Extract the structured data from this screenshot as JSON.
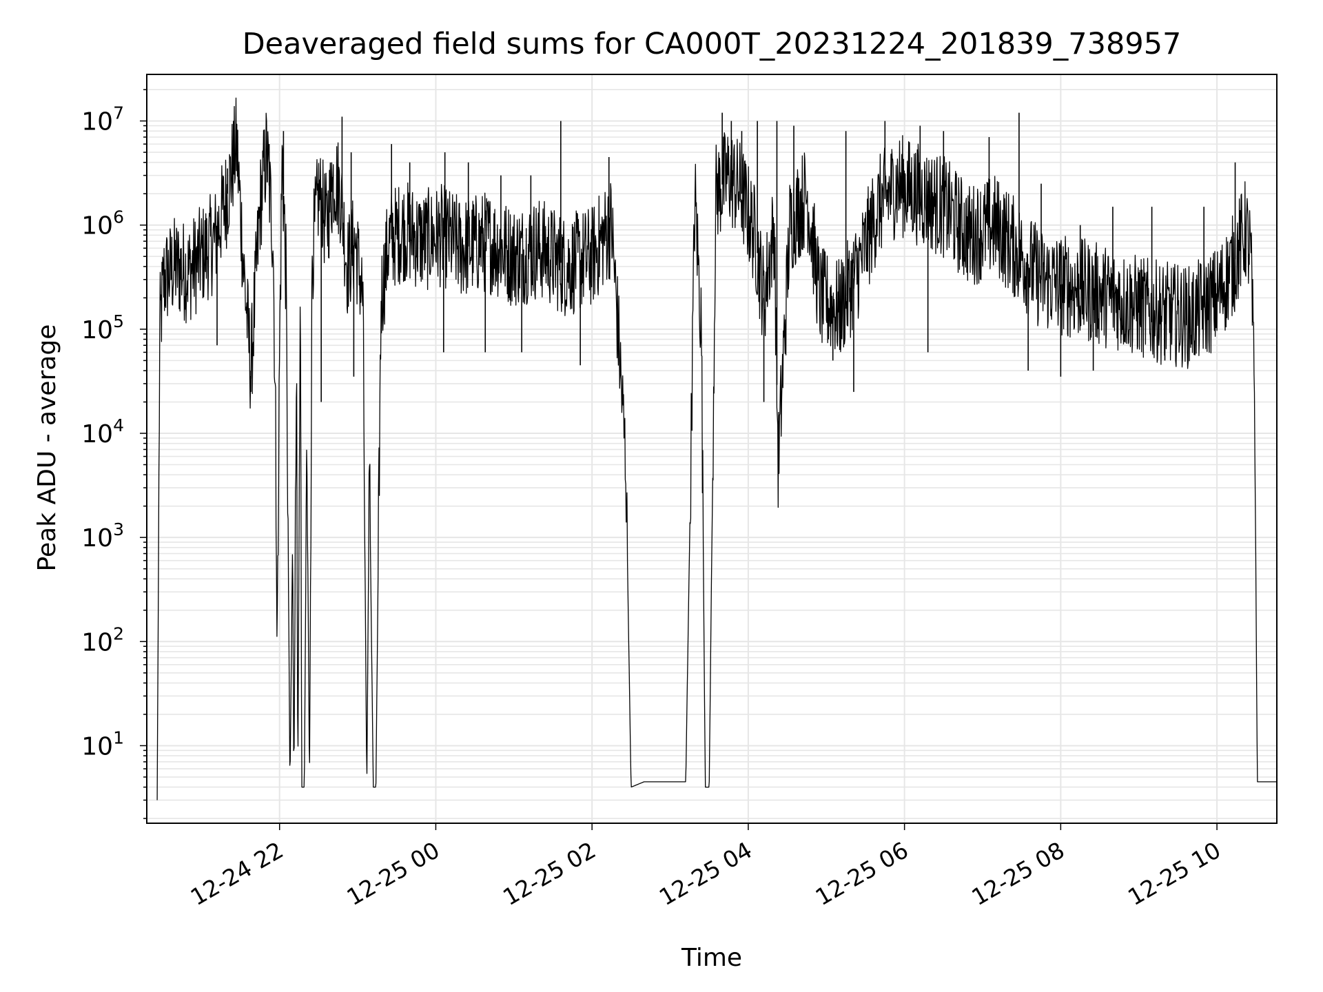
{
  "chart_data": {
    "type": "line",
    "title": "Deaveraged field sums for CA000T_20231224_201839_738957",
    "xlabel": "Time",
    "ylabel": "Peak ADU - average",
    "yscale": "log",
    "ylim": [
      1.8,
      28000000
    ],
    "xlim": [
      "2023-12-24 20:18",
      "2023-12-25 10:46"
    ],
    "grid": true,
    "x_ticks": [
      {
        "value": "2023-12-24 22:00",
        "label": "12-24 22"
      },
      {
        "value": "2023-12-25 00:00",
        "label": "12-25 00"
      },
      {
        "value": "2023-12-25 02:00",
        "label": "12-25 02"
      },
      {
        "value": "2023-12-25 04:00",
        "label": "12-25 04"
      },
      {
        "value": "2023-12-25 06:00",
        "label": "12-25 06"
      },
      {
        "value": "2023-12-25 08:00",
        "label": "12-25 08"
      },
      {
        "value": "2023-12-25 10:00",
        "label": "12-25 10"
      }
    ],
    "y_ticks": [
      {
        "value": 10,
        "base": "10",
        "exp": "1"
      },
      {
        "value": 100,
        "base": "10",
        "exp": "2"
      },
      {
        "value": 1000,
        "base": "10",
        "exp": "3"
      },
      {
        "value": 10000,
        "base": "10",
        "exp": "4"
      },
      {
        "value": 100000,
        "base": "10",
        "exp": "5"
      },
      {
        "value": 1000000,
        "base": "10",
        "exp": "6"
      },
      {
        "value": 10000000,
        "base": "10",
        "exp": "7"
      }
    ],
    "series": [
      {
        "color": "#000000",
        "points": [
          [
            "2023-12-24 20:26",
            3
          ],
          [
            "2023-12-24 20:28",
            100000
          ],
          [
            "2023-12-24 20:31",
            300000
          ],
          [
            "2023-12-24 20:40",
            400000
          ],
          [
            "2023-12-24 20:50",
            350000
          ],
          [
            "2023-12-24 21:00",
            500000
          ],
          [
            "2023-12-24 21:10",
            700000
          ],
          [
            "2023-12-24 21:20",
            2000000
          ],
          [
            "2023-12-24 21:27",
            6000000
          ],
          [
            "2023-12-24 21:33",
            300000
          ],
          [
            "2023-12-24 21:38",
            40000
          ],
          [
            "2023-12-24 21:45",
            1500000
          ],
          [
            "2023-12-24 21:50",
            5000000
          ],
          [
            "2023-12-24 21:55",
            800000
          ],
          [
            "2023-12-24 21:57",
            10000
          ],
          [
            "2023-12-24 21:58",
            90
          ],
          [
            "2023-12-24 22:00",
            60000
          ],
          [
            "2023-12-24 22:02",
            5000000
          ],
          [
            "2023-12-24 22:05",
            300000
          ],
          [
            "2023-12-24 22:07",
            200
          ],
          [
            "2023-12-24 22:08",
            4
          ],
          [
            "2023-12-24 22:10",
            1000
          ],
          [
            "2023-12-24 22:11",
            4
          ],
          [
            "2023-12-24 22:13",
            50000
          ],
          [
            "2023-12-24 22:14",
            4
          ],
          [
            "2023-12-24 22:16",
            300000
          ],
          [
            "2023-12-24 22:17",
            4
          ],
          [
            "2023-12-24 22:19",
            4
          ],
          [
            "2023-12-24 22:21",
            10000
          ],
          [
            "2023-12-24 22:23",
            4
          ],
          [
            "2023-12-24 22:25",
            500000
          ],
          [
            "2023-12-24 22:30",
            2000000
          ],
          [
            "2023-12-24 22:36",
            1000000
          ],
          [
            "2023-12-24 22:42",
            3000000
          ],
          [
            "2023-12-24 22:47",
            2000000
          ],
          [
            "2023-12-24 22:52",
            400000
          ],
          [
            "2023-12-24 22:58",
            700000
          ],
          [
            "2023-12-24 23:04",
            200000
          ],
          [
            "2023-12-24 23:07",
            4
          ],
          [
            "2023-12-24 23:09",
            5000
          ],
          [
            "2023-12-24 23:12",
            4
          ],
          [
            "2023-12-24 23:14",
            4
          ],
          [
            "2023-12-24 23:16",
            1000
          ],
          [
            "2023-12-24 23:18",
            200000
          ],
          [
            "2023-12-24 23:24",
            700000
          ],
          [
            "2023-12-24 23:35",
            900000
          ],
          [
            "2023-12-24 23:50",
            700000
          ],
          [
            "2023-12-25 00:05",
            800000
          ],
          [
            "2023-12-25 00:20",
            600000
          ],
          [
            "2023-12-25 00:40",
            700000
          ],
          [
            "2023-12-25 01:00",
            500000
          ],
          [
            "2023-12-25 01:20",
            600000
          ],
          [
            "2023-12-25 01:40",
            400000
          ],
          [
            "2023-12-25 02:00",
            500000
          ],
          [
            "2023-12-25 02:15",
            1000000
          ],
          [
            "2023-12-25 02:20",
            100000
          ],
          [
            "2023-12-25 02:26",
            5000
          ],
          [
            "2023-12-25 02:30",
            4
          ],
          [
            "2023-12-25 02:40",
            4.5
          ],
          [
            "2023-12-25 02:55",
            4.5
          ],
          [
            "2023-12-25 03:12",
            4.5
          ],
          [
            "2023-12-25 03:15",
            1000
          ],
          [
            "2023-12-25 03:19",
            2000000
          ],
          [
            "2023-12-25 03:24",
            100000
          ],
          [
            "2023-12-25 03:27",
            4
          ],
          [
            "2023-12-25 03:30",
            4
          ],
          [
            "2023-12-25 03:35",
            2000000
          ],
          [
            "2023-12-25 03:45",
            3000000
          ],
          [
            "2023-12-25 03:55",
            2000000
          ],
          [
            "2023-12-25 04:05",
            800000
          ],
          [
            "2023-12-25 04:12",
            200000
          ],
          [
            "2023-12-25 04:20",
            1000000
          ],
          [
            "2023-12-25 04:23",
            5000
          ],
          [
            "2023-12-25 04:26",
            30000
          ],
          [
            "2023-12-25 04:32",
            1000000
          ],
          [
            "2023-12-25 04:45",
            2000000
          ],
          [
            "2023-12-25 04:55",
            200000
          ],
          [
            "2023-12-25 05:10",
            150000
          ],
          [
            "2023-12-25 05:25",
            400000
          ],
          [
            "2023-12-25 05:40",
            1500000
          ],
          [
            "2023-12-25 05:55",
            2500000
          ],
          [
            "2023-12-25 06:10",
            2000000
          ],
          [
            "2023-12-25 06:30",
            1500000
          ],
          [
            "2023-12-25 06:50",
            800000
          ],
          [
            "2023-12-25 07:10",
            1000000
          ],
          [
            "2023-12-25 07:30",
            500000
          ],
          [
            "2023-12-25 07:45",
            300000
          ],
          [
            "2023-12-25 08:10",
            250000
          ],
          [
            "2023-12-25 08:40",
            200000
          ],
          [
            "2023-12-25 09:10",
            150000
          ],
          [
            "2023-12-25 09:40",
            130000
          ],
          [
            "2023-12-25 10:00",
            200000
          ],
          [
            "2023-12-25 10:12",
            400000
          ],
          [
            "2023-12-25 10:22",
            900000
          ],
          [
            "2023-12-25 10:26",
            500000
          ],
          [
            "2023-12-25 10:29",
            20000
          ],
          [
            "2023-12-25 10:31",
            4.5
          ],
          [
            "2023-12-25 10:46",
            4.5
          ]
        ],
        "spikes": [
          [
            "2023-12-24 21:20",
            3500000
          ],
          [
            "2023-12-24 21:27",
            8000000
          ],
          [
            "2023-12-24 21:52",
            6000000
          ],
          [
            "2023-12-24 22:03",
            8000000
          ],
          [
            "2023-12-24 22:40",
            4000000
          ],
          [
            "2023-12-24 22:48",
            11000000
          ],
          [
            "2023-12-24 22:55",
            5000000
          ],
          [
            "2023-12-24 23:26",
            6000000
          ],
          [
            "2023-12-24 23:40",
            4000000
          ],
          [
            "2023-12-25 00:07",
            5000000
          ],
          [
            "2023-12-25 00:25",
            4000000
          ],
          [
            "2023-12-25 00:50",
            3000000
          ],
          [
            "2023-12-25 01:13",
            3000000
          ],
          [
            "2023-12-25 01:36",
            10000000
          ],
          [
            "2023-12-25 02:13",
            4500000
          ],
          [
            "2023-12-25 03:40",
            12000000
          ],
          [
            "2023-12-25 03:47",
            10000000
          ],
          [
            "2023-12-25 03:55",
            8000000
          ],
          [
            "2023-12-25 04:07",
            10000000
          ],
          [
            "2023-12-25 04:22",
            10000000
          ],
          [
            "2023-12-25 04:35",
            9000000
          ],
          [
            "2023-12-25 05:15",
            8000000
          ],
          [
            "2023-12-25 05:45",
            10000000
          ],
          [
            "2023-12-25 06:12",
            9000000
          ],
          [
            "2023-12-25 06:30",
            8000000
          ],
          [
            "2023-12-25 07:05",
            7000000
          ],
          [
            "2023-12-25 07:28",
            12000000
          ],
          [
            "2023-12-25 07:45",
            2500000
          ],
          [
            "2023-12-25 08:15",
            1000000
          ],
          [
            "2023-12-25 08:40",
            1500000
          ],
          [
            "2023-12-25 09:10",
            1500000
          ],
          [
            "2023-12-25 09:50",
            1500000
          ],
          [
            "2023-12-25 10:14",
            4000000
          ]
        ],
        "dips": [
          [
            "2023-12-24 21:12",
            70000
          ],
          [
            "2023-12-24 21:38",
            25000
          ],
          [
            "2023-12-24 22:32",
            20000
          ],
          [
            "2023-12-24 22:57",
            35000
          ],
          [
            "2023-12-25 00:06",
            60000
          ],
          [
            "2023-12-25 00:38",
            60000
          ],
          [
            "2023-12-25 01:06",
            60000
          ],
          [
            "2023-12-25 01:51",
            45000
          ],
          [
            "2023-12-25 04:12",
            20000
          ],
          [
            "2023-12-25 05:05",
            50000
          ],
          [
            "2023-12-25 05:21",
            25000
          ],
          [
            "2023-12-25 06:18",
            60000
          ],
          [
            "2023-12-25 07:35",
            40000
          ],
          [
            "2023-12-25 08:00",
            35000
          ],
          [
            "2023-12-25 08:25",
            40000
          ],
          [
            "2023-12-25 09:20",
            50000
          ]
        ]
      }
    ]
  }
}
